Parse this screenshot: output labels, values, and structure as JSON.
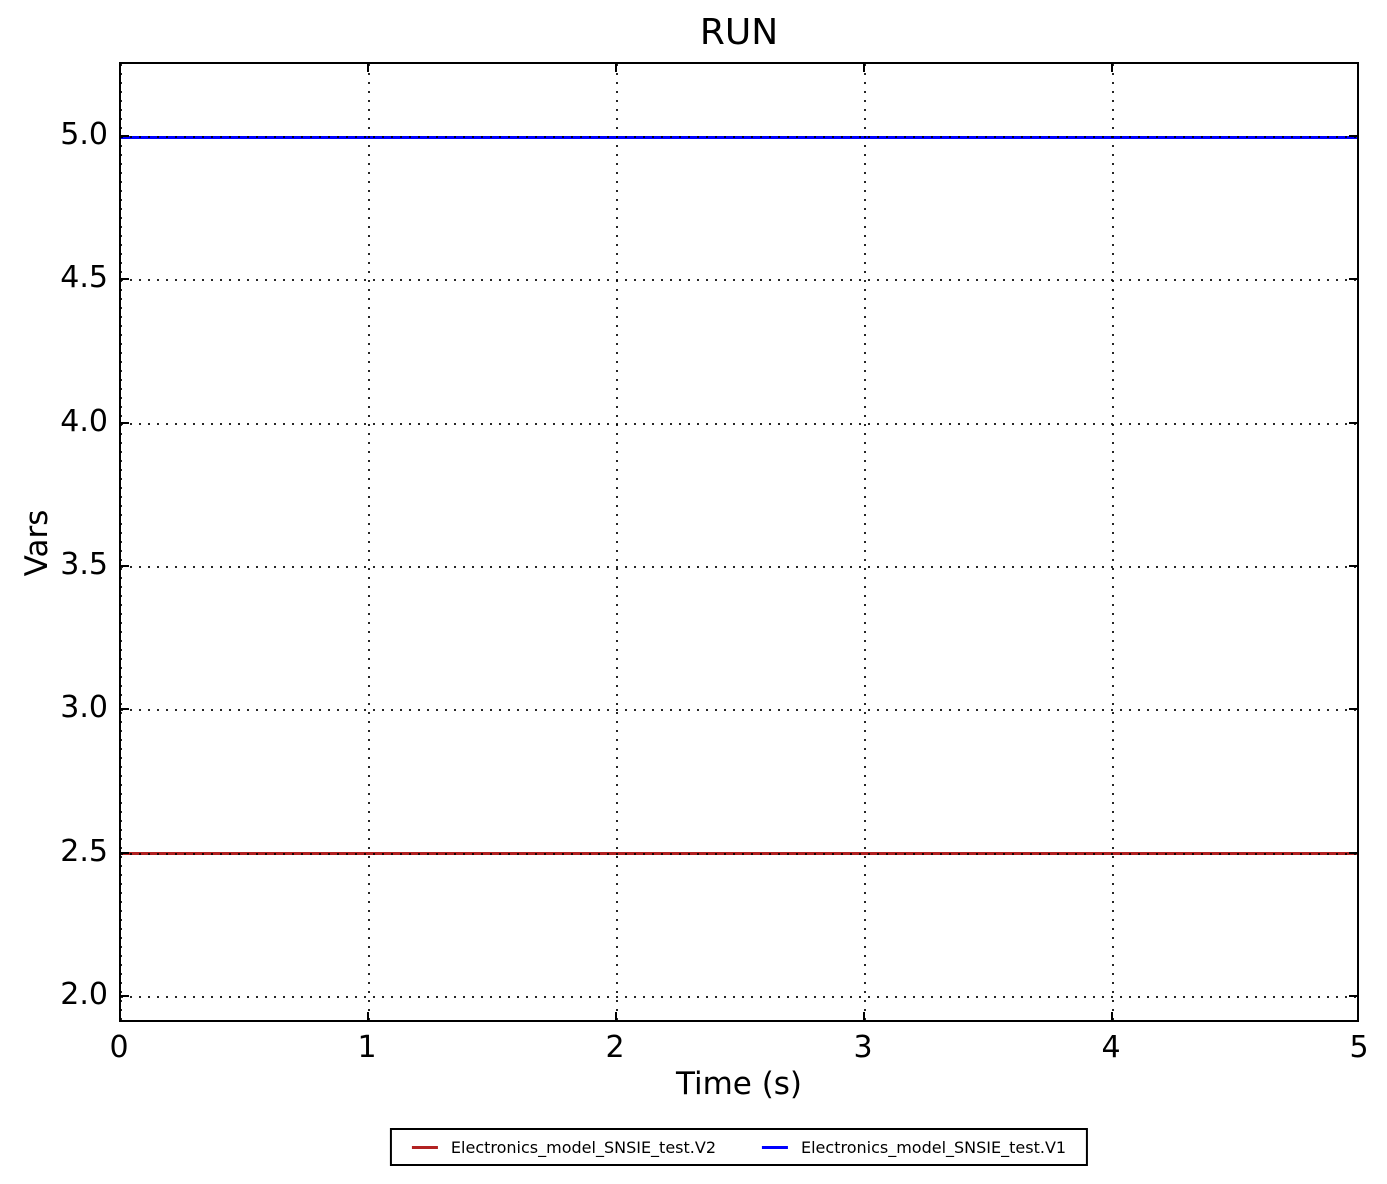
{
  "figure": {
    "background": "#ffffff",
    "text_color": "#000000"
  },
  "chart_data": {
    "type": "line",
    "title": "RUN",
    "xlabel": "Time (s)",
    "ylabel": "Vars",
    "xlim": [
      0,
      5
    ],
    "ylim": [
      1.906,
      5.255
    ],
    "xtick_values": [
      0,
      1,
      2,
      3,
      4,
      5
    ],
    "xtick_labels": [
      "0",
      "1",
      "2",
      "3",
      "4",
      "5"
    ],
    "ytick_values": [
      2.0,
      2.5,
      3.0,
      3.5,
      4.0,
      4.5,
      5.0
    ],
    "ytick_labels": [
      "2.0",
      "2.5",
      "3.0",
      "3.5",
      "4.0",
      "4.5",
      "5.0"
    ],
    "grid": true,
    "grid_style": "dotted",
    "grid_color": "#000000",
    "legend_position": "bottom-center",
    "series": [
      {
        "name": "Electronics_model_SNSIE_test.V2",
        "color": "#b22222",
        "x": [
          0,
          5
        ],
        "y": [
          2.5,
          2.5
        ]
      },
      {
        "name": "Electronics_model_SNSIE_test.V1",
        "color": "#0000ff",
        "x": [
          0,
          5
        ],
        "y": [
          5.0,
          5.0
        ]
      }
    ]
  }
}
